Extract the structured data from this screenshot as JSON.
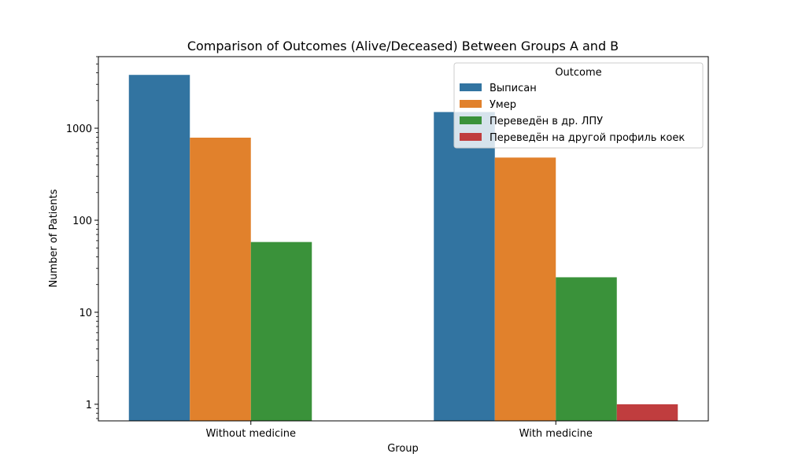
{
  "chart_data": {
    "type": "bar",
    "title": "Comparison of Outcomes (Alive/Deceased) Between Groups A and B",
    "xlabel": "Group",
    "ylabel": "Number of Patients",
    "y_scale": "log",
    "ylim": [
      0.66,
      6000
    ],
    "y_ticks": [
      1,
      10,
      100,
      1000
    ],
    "y_tick_labels": [
      "1",
      "10",
      "100",
      "1000"
    ],
    "categories": [
      "Without medicine",
      "With medicine"
    ],
    "series": [
      {
        "name": "Выписан",
        "color": "#3274a1",
        "values": [
          3800,
          1500
        ]
      },
      {
        "name": "Умер",
        "color": "#e1812c",
        "values": [
          790,
          480
        ]
      },
      {
        "name": "Переведён в др. ЛПУ",
        "color": "#3a923a",
        "values": [
          58,
          24
        ]
      },
      {
        "name": "Переведён на другой профиль коек",
        "color": "#c03d3e",
        "values": [
          null,
          1
        ]
      }
    ],
    "legend": {
      "title": "Outcome",
      "position": "top-right"
    },
    "grid": false
  }
}
